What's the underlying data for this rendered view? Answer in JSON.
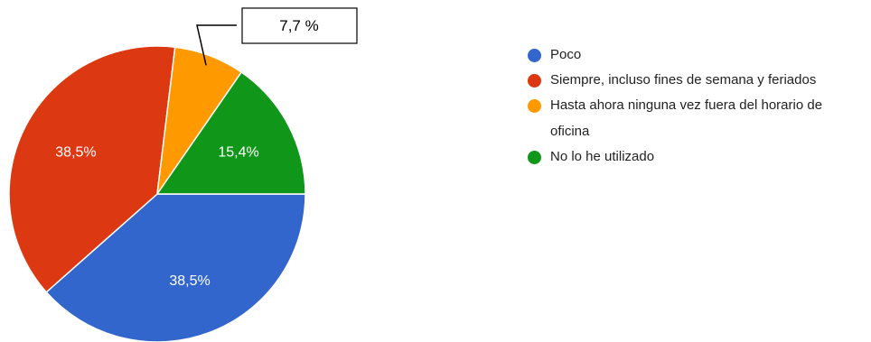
{
  "chart_data": {
    "type": "pie",
    "series": [
      {
        "slices": [
          {
            "label": "Poco",
            "value": 38.5,
            "display": "38,5%",
            "color": "#3366cc"
          },
          {
            "label": "Siempre, incluso fines de semana y feriados",
            "value": 38.5,
            "display": "38,5%",
            "color": "#dc3912"
          },
          {
            "label": "Hasta ahora ninguna vez fuera del horario de oficina",
            "value": 7.7,
            "display": "7,7 %",
            "color": "#ff9900",
            "callout": true
          },
          {
            "label": "No lo he utilizado",
            "value": 15.4,
            "display": "15,4%",
            "color": "#109618"
          }
        ]
      }
    ],
    "start_direction": "east",
    "order": "clockwise",
    "legend_position": "right"
  }
}
